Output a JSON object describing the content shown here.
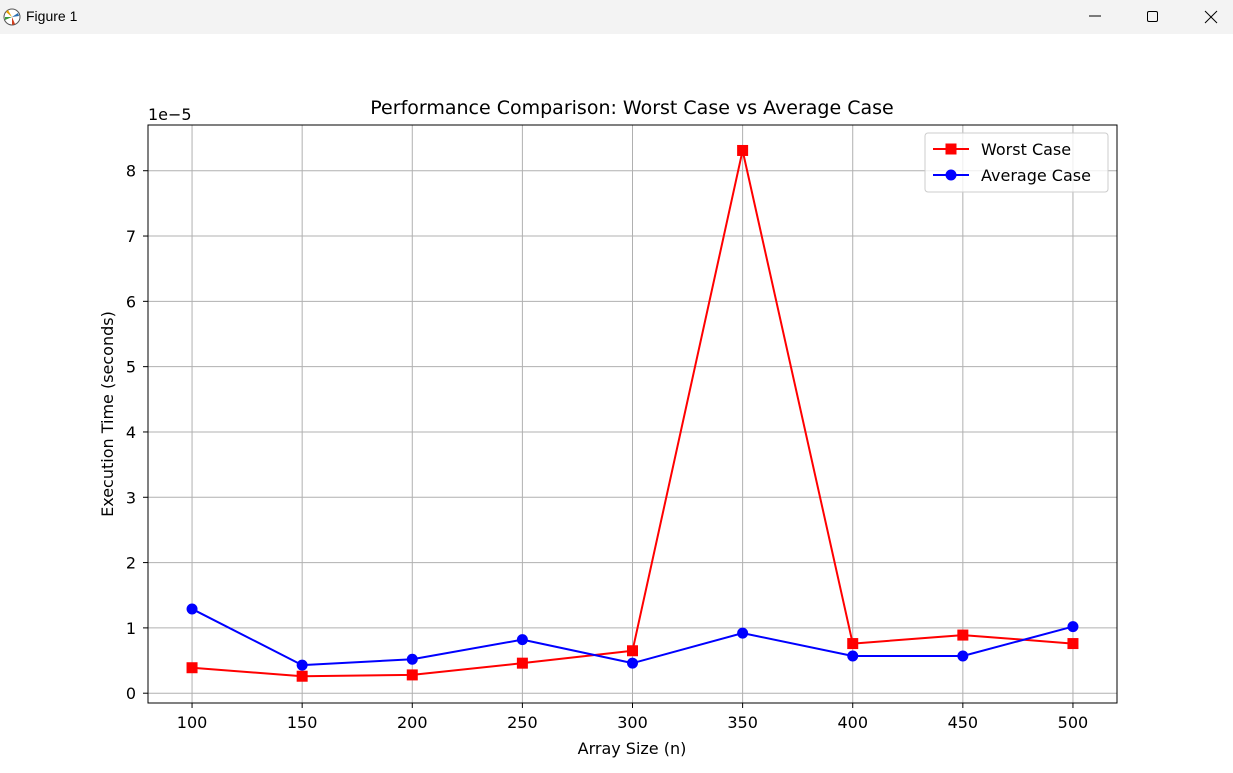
{
  "window": {
    "title": "Figure 1",
    "icons": [
      "matplotlib-logo-icon",
      "minimize-icon",
      "maximize-icon",
      "close-icon"
    ]
  },
  "chart_data": {
    "type": "line",
    "title": "Performance Comparison: Worst Case vs Average Case",
    "xlabel": "Array Size (n)",
    "ylabel": "Execution Time (seconds)",
    "y_offset_label": "1e−5",
    "y_scale_factor": 1e-05,
    "x": [
      100,
      150,
      200,
      250,
      300,
      350,
      400,
      450,
      500
    ],
    "xlim": [
      80,
      520
    ],
    "ylim": [
      -0.15,
      8.7
    ],
    "xticks": [
      100,
      150,
      200,
      250,
      300,
      350,
      400,
      450,
      500
    ],
    "yticks": [
      0,
      1,
      2,
      3,
      4,
      5,
      6,
      7,
      8
    ],
    "grid": true,
    "legend_position": "top-right",
    "series": [
      {
        "name": "Worst Case",
        "color": "#ff0000",
        "marker": "square",
        "values": [
          0.39,
          0.26,
          0.28,
          0.46,
          0.65,
          8.31,
          0.76,
          0.89,
          0.76
        ]
      },
      {
        "name": "Average Case",
        "color": "#0000ff",
        "marker": "circle",
        "values": [
          1.29,
          0.43,
          0.52,
          0.82,
          0.46,
          0.92,
          0.57,
          0.57,
          1.02
        ]
      }
    ]
  }
}
